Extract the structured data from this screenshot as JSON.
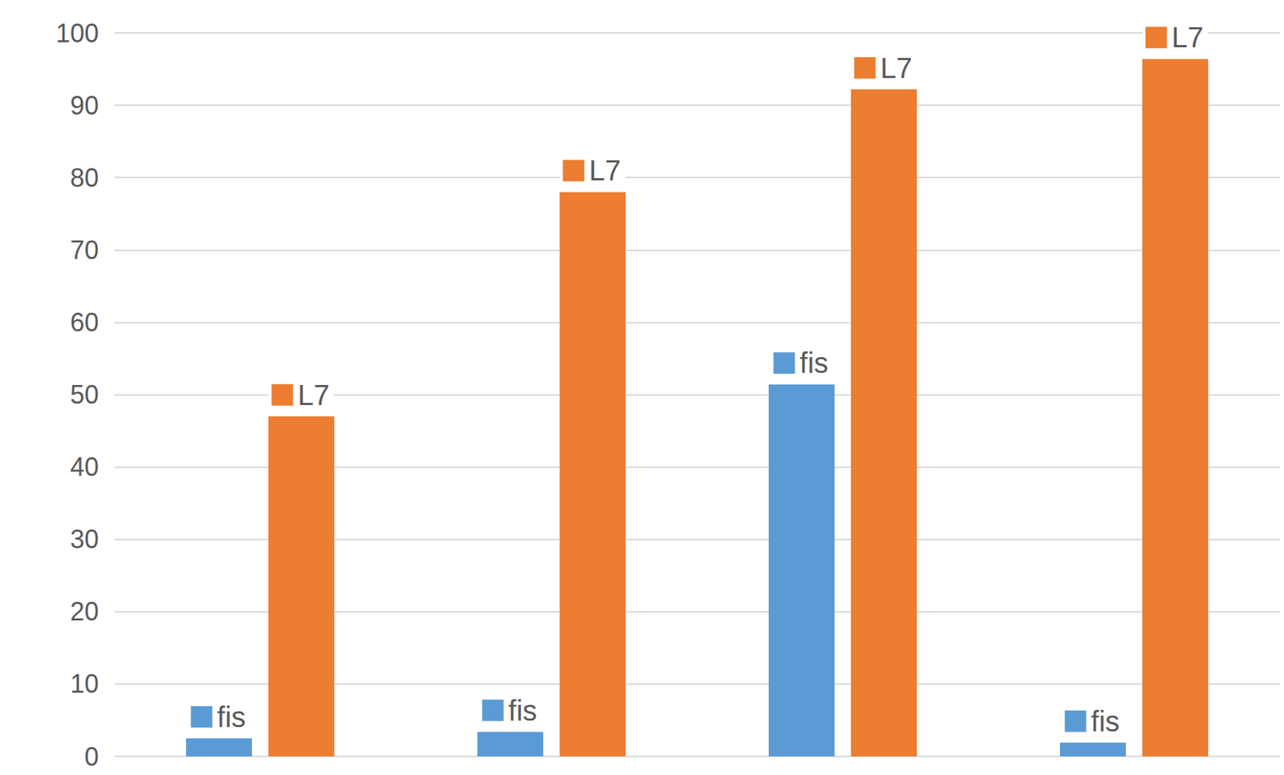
{
  "chart_data": {
    "type": "bar",
    "categories": [
      null,
      null,
      null,
      null
    ],
    "series": [
      {
        "name": "fis",
        "color": "#5b9bd5",
        "values": [
          2.5,
          3.4,
          51.4,
          1.9
        ]
      },
      {
        "name": "L7",
        "color": "#ed7d31",
        "values": [
          47,
          78,
          92.2,
          96.4
        ]
      }
    ],
    "ylim": [
      0,
      100
    ],
    "yticks": [
      0,
      10,
      20,
      30,
      40,
      50,
      60,
      70,
      80,
      90,
      100
    ],
    "grid": true,
    "tick_labels": "y"
  }
}
